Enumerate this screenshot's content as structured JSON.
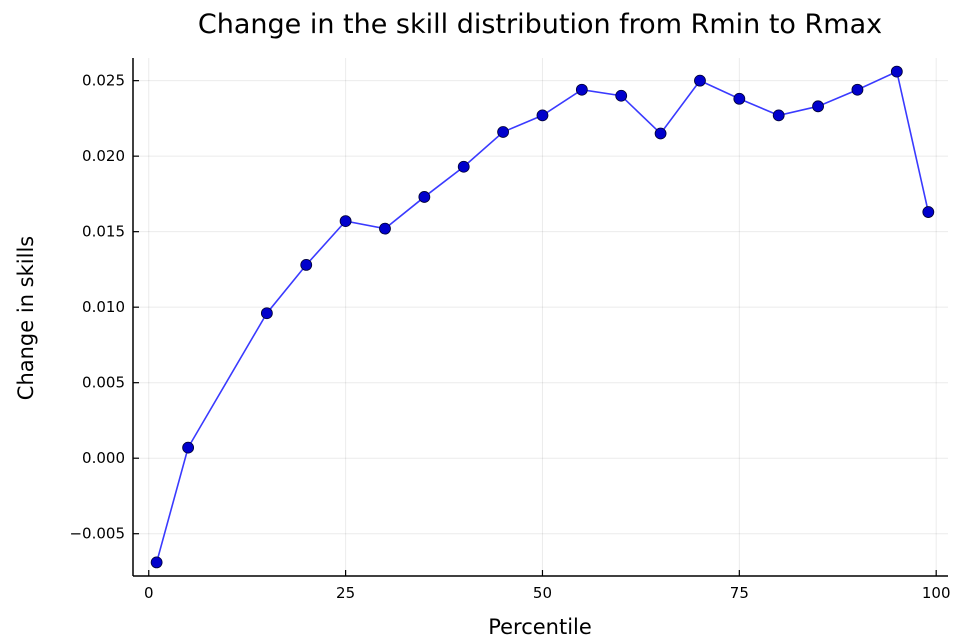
{
  "chart_data": {
    "type": "line",
    "title": "Change in the skill distribution from Rmin to Rmax",
    "xlabel": "Percentile",
    "ylabel": "Change in skills",
    "xlim": [
      -2,
      101.5
    ],
    "ylim": [
      -0.0078,
      0.0265
    ],
    "xticks": [
      0,
      25,
      50,
      75,
      100
    ],
    "xtick_labels": [
      "0",
      "25",
      "50",
      "75",
      "100"
    ],
    "yticks": [
      -0.005,
      0.0,
      0.005,
      0.01,
      0.015,
      0.02,
      0.025
    ],
    "ytick_labels": [
      "−0.005",
      "0.000",
      "0.005",
      "0.010",
      "0.015",
      "0.020",
      "0.025"
    ],
    "grid": true,
    "legend": "none",
    "series": [
      {
        "line_color": "#3a3aff",
        "marker_color": "#0000cc",
        "marker": "circle",
        "x": [
          1,
          5,
          15,
          20,
          25,
          30,
          35,
          40,
          45,
          50,
          55,
          60,
          65,
          70,
          75,
          80,
          85,
          90,
          95,
          99
        ],
        "y": [
          -0.0069,
          0.0007,
          0.0096,
          0.0128,
          0.0157,
          0.0152,
          0.0173,
          0.0193,
          0.0216,
          0.0227,
          0.0244,
          0.024,
          0.0215,
          0.025,
          0.0238,
          0.0227,
          0.0233,
          0.0244,
          0.0256,
          0.0163
        ]
      }
    ]
  }
}
